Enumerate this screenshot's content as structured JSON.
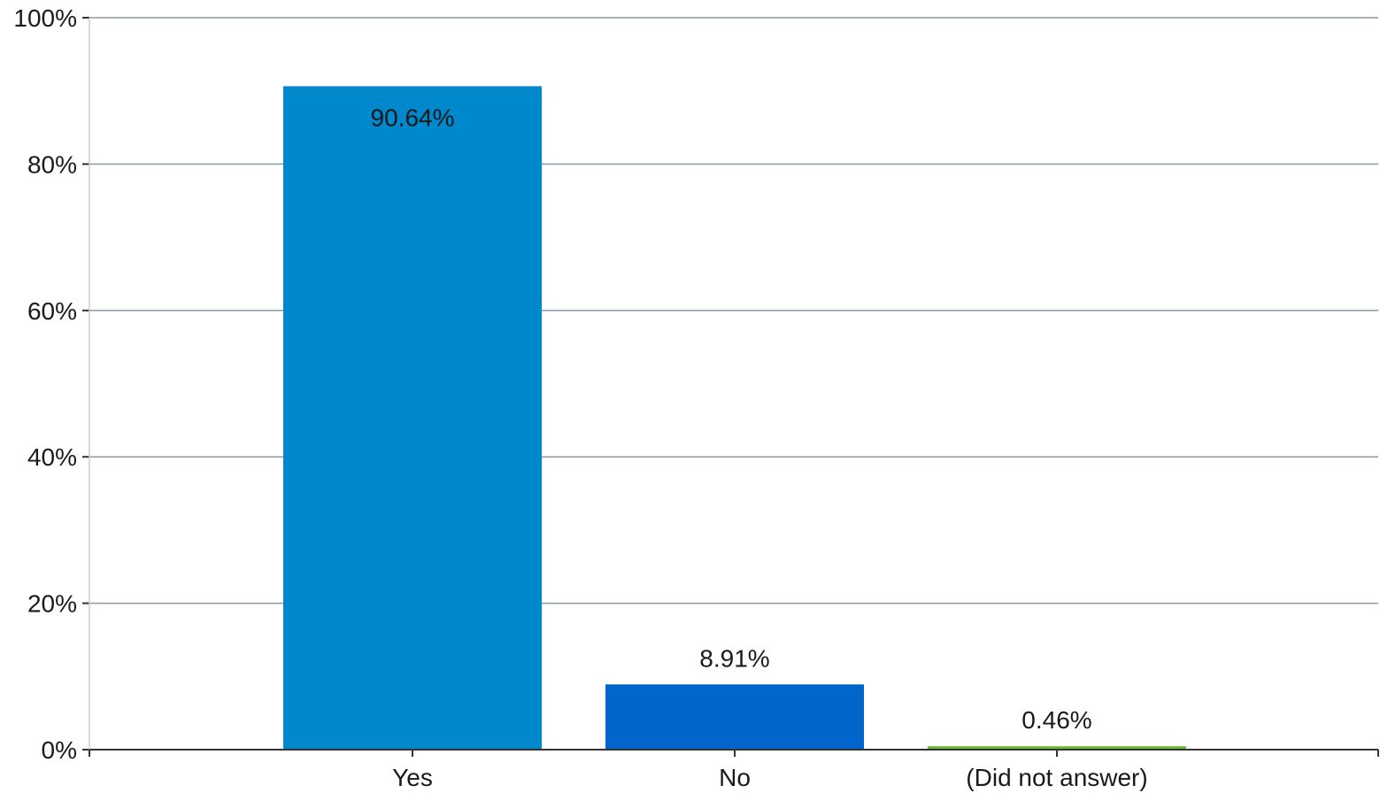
{
  "chart_data": {
    "type": "bar",
    "categories": [
      "Yes",
      "No",
      "(Did not answer)"
    ],
    "values": [
      90.64,
      8.91,
      0.46
    ],
    "data_labels": [
      "90.64%",
      "8.91%",
      "0.46%"
    ],
    "bar_colors": [
      "#0088cc",
      "#0066cc",
      "#66bb33"
    ],
    "ylim": [
      0,
      100
    ],
    "yticks": [
      0,
      20,
      40,
      60,
      80,
      100
    ],
    "ytick_labels": [
      "0%",
      "20%",
      "40%",
      "60%",
      "80%",
      "100%"
    ],
    "grid": true,
    "legend": "none",
    "title": "",
    "xlabel": "",
    "ylabel": ""
  }
}
